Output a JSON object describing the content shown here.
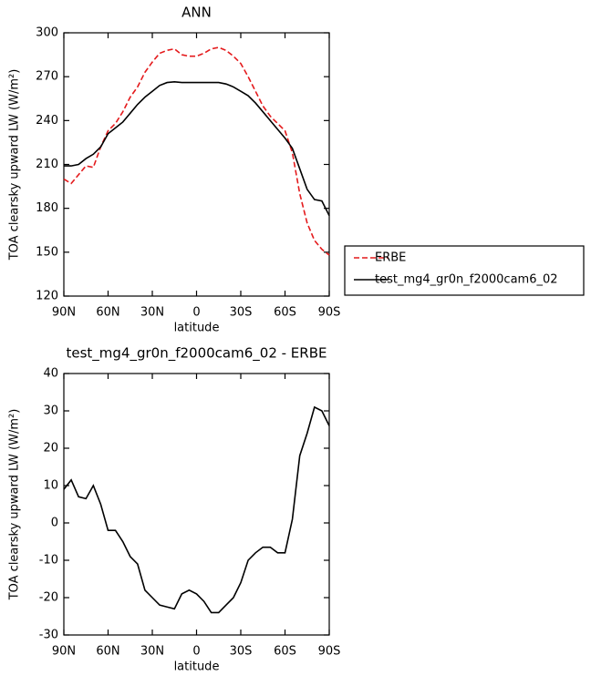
{
  "chart_data": [
    {
      "type": "line",
      "title": "ANN",
      "xlabel": "latitude",
      "ylabel": "TOA clearsky upward LW (W/m²)",
      "x": [
        90,
        85,
        80,
        75,
        70,
        65,
        60,
        55,
        50,
        45,
        40,
        35,
        30,
        25,
        20,
        15,
        10,
        5,
        0,
        -5,
        -10,
        -15,
        -20,
        -25,
        -30,
        -35,
        -40,
        -45,
        -50,
        -55,
        -60,
        -65,
        -70,
        -75,
        -80,
        -85,
        -90
      ],
      "series": [
        {
          "name": "ERBE",
          "color": "#e41a1c",
          "style": "dashed",
          "values": [
            200,
            197,
            203,
            209,
            208,
            222,
            233,
            238,
            246,
            256,
            263,
            273,
            280,
            286,
            288,
            289,
            285,
            284,
            284,
            286,
            289,
            290,
            288,
            284,
            279,
            270,
            260,
            250,
            243,
            238,
            233,
            218,
            190,
            170,
            158,
            152,
            148
          ]
        },
        {
          "name": "test_mg4_gr0n_f2000cam6_02",
          "color": "#000000",
          "style": "solid",
          "values": [
            209,
            209,
            210,
            214,
            217,
            222,
            231,
            235,
            239,
            245,
            251,
            256,
            260,
            264,
            266,
            266.5,
            266,
            266,
            266,
            266,
            266,
            266,
            265,
            263,
            260,
            257,
            252,
            246,
            240,
            234,
            228,
            221,
            207,
            193,
            186,
            185,
            175
          ]
        }
      ],
      "xlim": [
        90,
        -90
      ],
      "xticks": [
        {
          "value": 90,
          "label": "90N"
        },
        {
          "value": 60,
          "label": "60N"
        },
        {
          "value": 30,
          "label": "30N"
        },
        0,
        {
          "value": -30,
          "label": "30S"
        },
        {
          "value": -60,
          "label": "60S"
        },
        {
          "value": -90,
          "label": "90S"
        }
      ],
      "ylim": [
        120,
        300
      ],
      "yticks": [
        120,
        150,
        180,
        210,
        240,
        270,
        300
      ],
      "legend": "right"
    },
    {
      "type": "line",
      "title": "test_mg4_gr0n_f2000cam6_02 - ERBE",
      "xlabel": "latitude",
      "ylabel": "TOA clearsky upward LW (W/m²)",
      "x": [
        90,
        85,
        80,
        75,
        70,
        65,
        60,
        55,
        50,
        45,
        40,
        35,
        30,
        25,
        20,
        15,
        10,
        5,
        0,
        -5,
        -10,
        -15,
        -20,
        -25,
        -30,
        -35,
        -40,
        -45,
        -50,
        -55,
        -60,
        -65,
        -70,
        -75,
        -80,
        -85,
        -90
      ],
      "series": [
        {
          "color": "#000000",
          "style": "solid",
          "values": [
            9,
            11.5,
            7,
            6.5,
            10,
            5,
            -2,
            -2,
            -5,
            -9,
            -11,
            -18,
            -20,
            -22,
            -22.5,
            -23,
            -19,
            -18,
            -19,
            -21,
            -24,
            -24,
            -22,
            -20,
            -16,
            -10,
            -8,
            -6.5,
            -6.5,
            -8,
            -8,
            1,
            18,
            24,
            31,
            30,
            26
          ]
        }
      ],
      "xlim": [
        90,
        -90
      ],
      "xticks": [
        {
          "value": 90,
          "label": "90N"
        },
        {
          "value": 60,
          "label": "60N"
        },
        {
          "value": 30,
          "label": "30N"
        },
        0,
        {
          "value": -30,
          "label": "30S"
        },
        {
          "value": -60,
          "label": "60S"
        },
        {
          "value": -90,
          "label": "90S"
        }
      ],
      "ylim": [
        -30,
        40
      ],
      "yticks": [
        -30,
        -20,
        -10,
        0,
        10,
        20,
        30,
        40
      ]
    }
  ]
}
